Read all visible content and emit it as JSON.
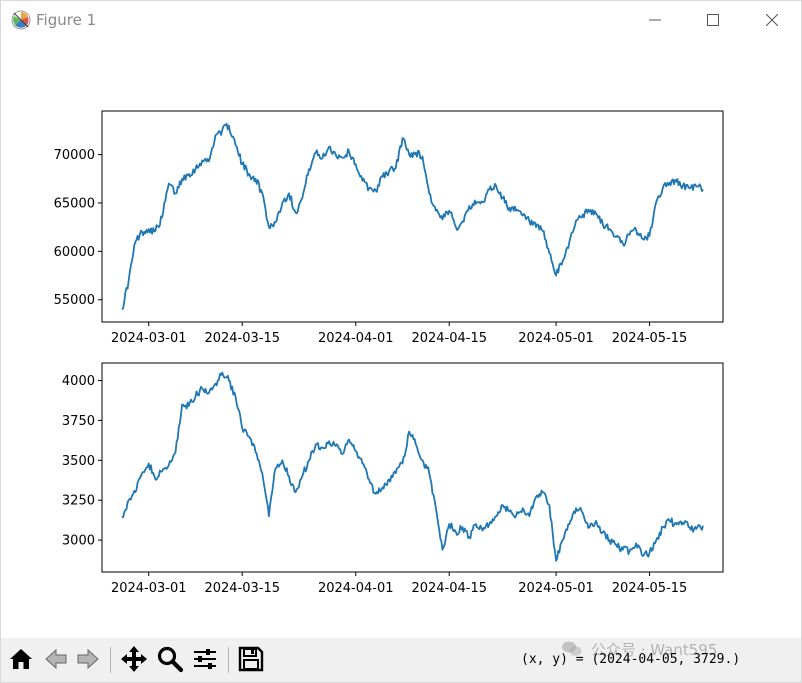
{
  "window": {
    "title": "Figure 1",
    "icons": {
      "app": "matplotlib-icon",
      "minimize": "minimize-icon",
      "maximize": "maximize-icon",
      "close": "close-icon"
    }
  },
  "toolbar": {
    "tools": [
      {
        "name": "home-icon",
        "tooltip": "Home"
      },
      {
        "name": "back-icon",
        "tooltip": "Back"
      },
      {
        "name": "forward-icon",
        "tooltip": "Forward"
      },
      {
        "name": "pan-icon",
        "tooltip": "Pan"
      },
      {
        "name": "zoom-icon",
        "tooltip": "Zoom"
      },
      {
        "name": "configure-subplots-icon",
        "tooltip": "Subplots"
      },
      {
        "name": "save-icon",
        "tooltip": "Save"
      }
    ],
    "coord_readout": "(x, y) = (2024-04-05, 3729.)",
    "watermark_text": "公众号 · Want595"
  },
  "colors": {
    "line": "#1f77b4",
    "toolbar_bg": "#f0f0f0",
    "title_text": "#8a8a8a"
  },
  "chart_data": [
    {
      "type": "line",
      "x_type": "date",
      "x_range": [
        "2024-02-23",
        "2024-05-26"
      ],
      "xticks": [
        "2024-03-01",
        "2024-03-15",
        "2024-04-01",
        "2024-04-15",
        "2024-05-01",
        "2024-05-15"
      ],
      "ylim": [
        52700,
        74500
      ],
      "yticks": [
        55000,
        60000,
        65000,
        70000
      ],
      "grid": false,
      "series": [
        {
          "x": [
            "2024-02-26",
            "2024-02-27",
            "2024-02-28",
            "2024-02-29",
            "2024-03-01",
            "2024-03-02",
            "2024-03-03",
            "2024-03-04",
            "2024-03-05",
            "2024-03-06",
            "2024-03-07",
            "2024-03-08",
            "2024-03-09",
            "2024-03-10",
            "2024-03-11",
            "2024-03-12",
            "2024-03-13",
            "2024-03-14",
            "2024-03-15",
            "2024-03-16",
            "2024-03-17",
            "2024-03-18",
            "2024-03-19",
            "2024-03-20",
            "2024-03-21",
            "2024-03-22",
            "2024-03-23",
            "2024-03-24",
            "2024-03-25",
            "2024-03-26",
            "2024-03-27",
            "2024-03-28",
            "2024-03-29",
            "2024-03-30",
            "2024-03-31",
            "2024-04-01",
            "2024-04-02",
            "2024-04-03",
            "2024-04-04",
            "2024-04-05",
            "2024-04-06",
            "2024-04-07",
            "2024-04-08",
            "2024-04-09",
            "2024-04-10",
            "2024-04-11",
            "2024-04-12",
            "2024-04-13",
            "2024-04-14",
            "2024-04-15",
            "2024-04-16",
            "2024-04-17",
            "2024-04-18",
            "2024-04-19",
            "2024-04-20",
            "2024-04-21",
            "2024-04-22",
            "2024-04-23",
            "2024-04-24",
            "2024-04-25",
            "2024-04-26",
            "2024-04-27",
            "2024-04-28",
            "2024-04-29",
            "2024-04-30",
            "2024-05-01",
            "2024-05-02",
            "2024-05-03",
            "2024-05-04",
            "2024-05-05",
            "2024-05-06",
            "2024-05-07",
            "2024-05-08",
            "2024-05-09",
            "2024-05-10",
            "2024-05-11",
            "2024-05-12",
            "2024-05-13",
            "2024-05-14",
            "2024-05-15",
            "2024-05-16",
            "2024-05-17",
            "2024-05-18",
            "2024-05-19",
            "2024-05-20",
            "2024-05-21",
            "2024-05-22",
            "2024-05-23"
          ],
          "values": [
            54000,
            57000,
            61000,
            62000,
            62300,
            62100,
            63500,
            67000,
            66000,
            67500,
            68000,
            68500,
            69400,
            69300,
            72000,
            72500,
            73000,
            71000,
            69000,
            68000,
            67500,
            66000,
            62500,
            63000,
            65000,
            66000,
            64000,
            65500,
            68500,
            70200,
            69600,
            70800,
            70000,
            69700,
            70300,
            69000,
            67300,
            66500,
            66300,
            67700,
            68300,
            68600,
            71700,
            70000,
            70200,
            69800,
            66000,
            64200,
            63300,
            64200,
            62500,
            63100,
            64700,
            64900,
            65100,
            66400,
            66800,
            65500,
            64500,
            64200,
            63700,
            63100,
            62500,
            62100,
            59800,
            57500,
            59000,
            61000,
            63200,
            63800,
            64100,
            63900,
            62800,
            62300,
            61500,
            60800,
            61700,
            62200,
            61300,
            61600,
            65100,
            66600,
            67100,
            67200,
            66800,
            66500,
            66700,
            66400
          ]
        }
      ]
    },
    {
      "type": "line",
      "x_type": "date",
      "x_range": [
        "2024-02-23",
        "2024-05-26"
      ],
      "xticks": [
        "2024-03-01",
        "2024-03-15",
        "2024-04-01",
        "2024-04-15",
        "2024-05-01",
        "2024-05-15"
      ],
      "ylim": [
        2800,
        4110
      ],
      "yticks": [
        3000,
        3250,
        3500,
        3750,
        4000
      ],
      "grid": false,
      "series": [
        {
          "x": [
            "2024-02-26",
            "2024-02-27",
            "2024-02-28",
            "2024-02-29",
            "2024-03-01",
            "2024-03-02",
            "2024-03-03",
            "2024-03-04",
            "2024-03-05",
            "2024-03-06",
            "2024-03-07",
            "2024-03-08",
            "2024-03-09",
            "2024-03-10",
            "2024-03-11",
            "2024-03-12",
            "2024-03-13",
            "2024-03-14",
            "2024-03-15",
            "2024-03-16",
            "2024-03-17",
            "2024-03-18",
            "2024-03-19",
            "2024-03-20",
            "2024-03-21",
            "2024-03-22",
            "2024-03-23",
            "2024-03-24",
            "2024-03-25",
            "2024-03-26",
            "2024-03-27",
            "2024-03-28",
            "2024-03-29",
            "2024-03-30",
            "2024-03-31",
            "2024-04-01",
            "2024-04-02",
            "2024-04-03",
            "2024-04-04",
            "2024-04-05",
            "2024-04-06",
            "2024-04-07",
            "2024-04-08",
            "2024-04-09",
            "2024-04-10",
            "2024-04-11",
            "2024-04-12",
            "2024-04-13",
            "2024-04-14",
            "2024-04-15",
            "2024-04-16",
            "2024-04-17",
            "2024-04-18",
            "2024-04-19",
            "2024-04-20",
            "2024-04-21",
            "2024-04-22",
            "2024-04-23",
            "2024-04-24",
            "2024-04-25",
            "2024-04-26",
            "2024-04-27",
            "2024-04-28",
            "2024-04-29",
            "2024-04-30",
            "2024-05-01",
            "2024-05-02",
            "2024-05-03",
            "2024-05-04",
            "2024-05-05",
            "2024-05-06",
            "2024-05-07",
            "2024-05-08",
            "2024-05-09",
            "2024-05-10",
            "2024-05-11",
            "2024-05-12",
            "2024-05-13",
            "2024-05-14",
            "2024-05-15",
            "2024-05-16",
            "2024-05-17",
            "2024-05-18",
            "2024-05-19",
            "2024-05-20",
            "2024-05-21",
            "2024-05-22",
            "2024-05-23"
          ],
          "values": [
            3150,
            3250,
            3300,
            3420,
            3480,
            3380,
            3430,
            3470,
            3550,
            3850,
            3840,
            3900,
            3950,
            3920,
            3980,
            4050,
            4000,
            3900,
            3700,
            3650,
            3550,
            3420,
            3150,
            3450,
            3500,
            3400,
            3300,
            3400,
            3500,
            3600,
            3580,
            3620,
            3590,
            3540,
            3630,
            3560,
            3480,
            3380,
            3290,
            3330,
            3380,
            3420,
            3480,
            3680,
            3600,
            3500,
            3420,
            3200,
            2940,
            3100,
            3050,
            3080,
            3020,
            3100,
            3060,
            3100,
            3150,
            3220,
            3180,
            3150,
            3200,
            3150,
            3270,
            3300,
            3220,
            2870,
            3000,
            3100,
            3200,
            3170,
            3080,
            3120,
            3050,
            3000,
            2970,
            2940,
            2930,
            2980,
            2900,
            2920,
            3000,
            3080,
            3120,
            3100,
            3110,
            3080,
            3070,
            3090
          ]
        }
      ]
    }
  ]
}
